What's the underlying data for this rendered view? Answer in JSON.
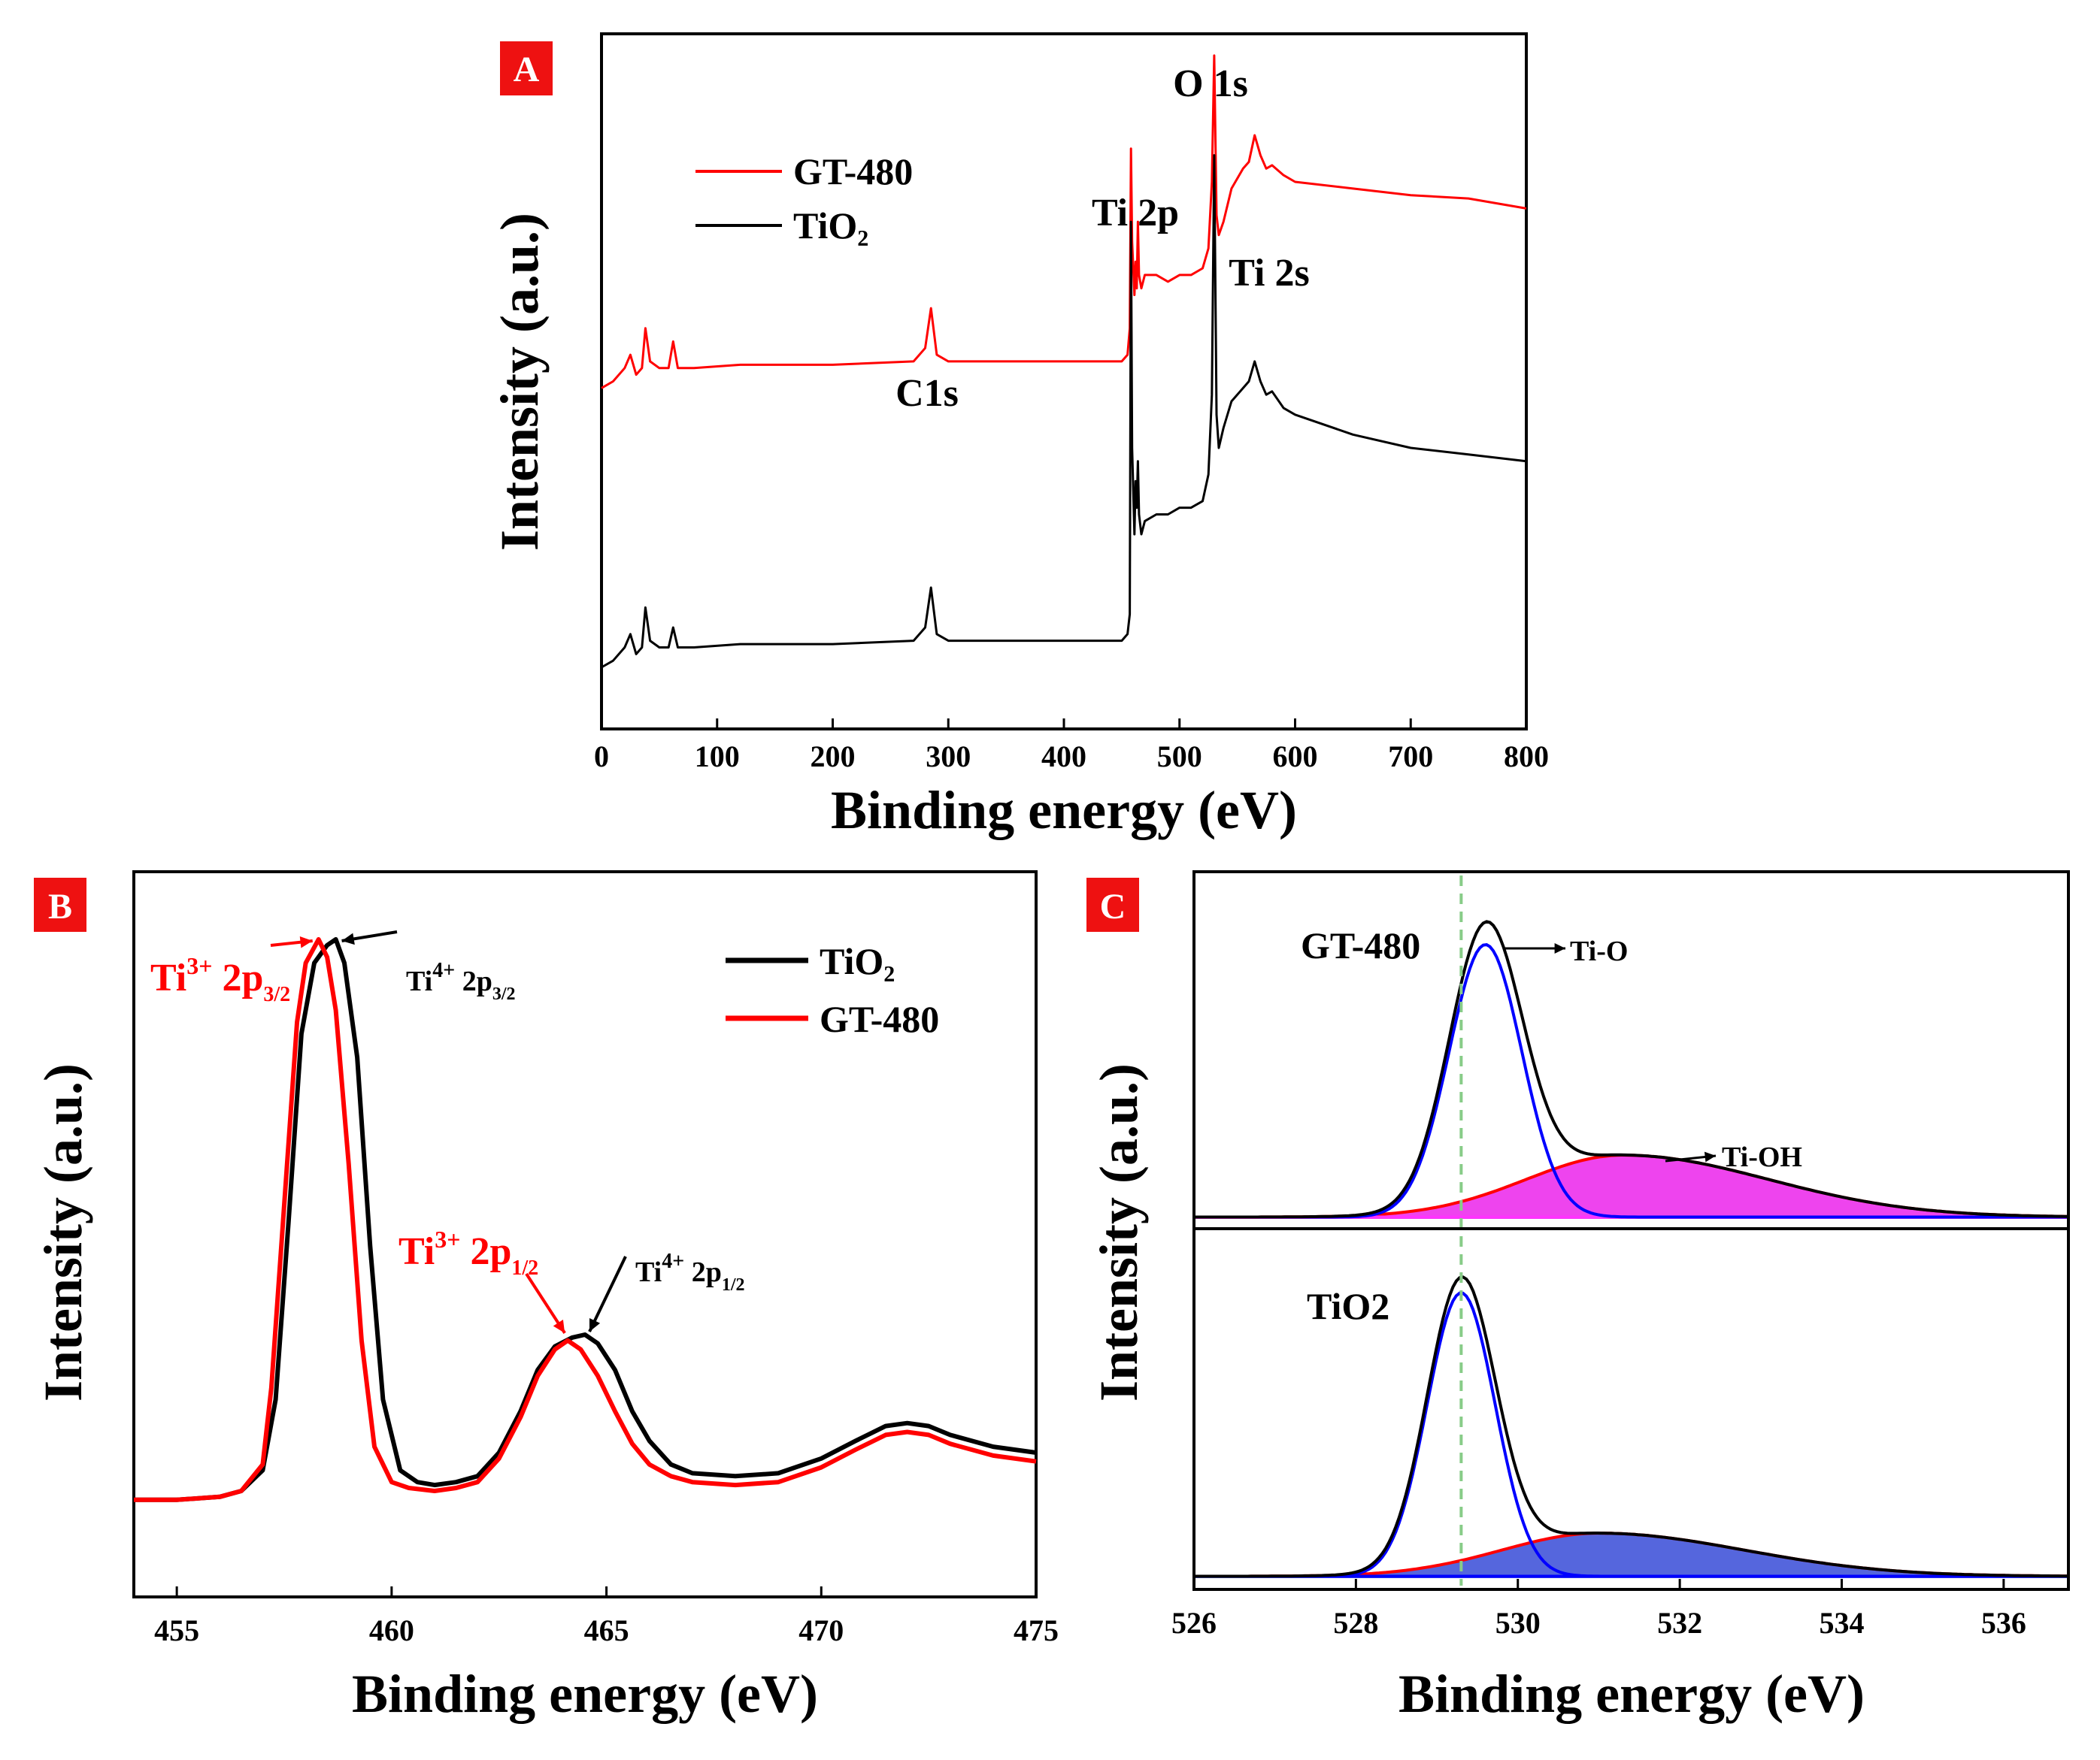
{
  "colors": {
    "red": "#ff0000",
    "black": "#000000",
    "blue": "#0000ff",
    "magenta": "#ff33ff",
    "magenta_fill": "#ee44ee",
    "blue_fill": "#5566dd",
    "badge": "#ee1111",
    "guide": "#88cc88"
  },
  "chart_data": [
    {
      "panel": "A",
      "type": "line",
      "title": "",
      "xlabel": "Binding energy (eV)",
      "ylabel": "Intensity (a.u.)",
      "xlim": [
        0,
        800
      ],
      "ylim": [
        0,
        100
      ],
      "xticks": [
        "0",
        "100",
        "200",
        "300",
        "400",
        "500",
        "600",
        "700",
        "800"
      ],
      "legend": {
        "position": "top-left",
        "entries": [
          "GT-480",
          "TiO₂"
        ]
      },
      "annotations": [
        {
          "text": "C1s",
          "x": 285
        },
        {
          "text": "Ti 2p",
          "x": 458
        },
        {
          "text": "O 1s",
          "x": 530
        },
        {
          "text": "Ti 2s",
          "x": 565
        }
      ],
      "series": [
        {
          "name": "GT-480",
          "color": "#ff0000",
          "x": [
            0,
            10,
            20,
            25,
            30,
            35,
            38,
            42,
            50,
            58,
            62,
            66,
            80,
            120,
            200,
            270,
            280,
            285,
            290,
            300,
            350,
            400,
            430,
            450,
            455,
            457,
            458,
            459,
            461,
            462,
            463,
            464,
            465,
            467,
            470,
            480,
            490,
            500,
            510,
            520,
            525,
            528,
            530,
            532,
            534,
            538,
            545,
            555,
            560,
            565,
            570,
            575,
            580,
            590,
            600,
            650,
            700,
            750,
            800
          ],
          "y": [
            49,
            50,
            52,
            54,
            51,
            52,
            58,
            53,
            52,
            52,
            56,
            52,
            52,
            52.5,
            52.5,
            53,
            55,
            61,
            54,
            53,
            53,
            53,
            53,
            53,
            54,
            58,
            85,
            71,
            63,
            68,
            64,
            74,
            66,
            64,
            66,
            66,
            65,
            66,
            66,
            67,
            70,
            80,
            99,
            75,
            72,
            74,
            79,
            82,
            83,
            87,
            84,
            82,
            82.5,
            81,
            80,
            79,
            78,
            77.5,
            76
          ]
        },
        {
          "name": "TiO₂",
          "color": "#000000",
          "x": [
            0,
            10,
            20,
            25,
            30,
            35,
            38,
            42,
            50,
            58,
            62,
            66,
            80,
            120,
            200,
            270,
            280,
            285,
            290,
            300,
            350,
            400,
            430,
            450,
            455,
            457,
            458,
            459,
            461,
            462,
            463,
            464,
            465,
            467,
            470,
            480,
            490,
            500,
            510,
            520,
            525,
            528,
            530,
            532,
            534,
            538,
            545,
            555,
            560,
            565,
            570,
            575,
            580,
            590,
            600,
            650,
            700,
            750,
            800
          ],
          "y": [
            7,
            8,
            10,
            12,
            9,
            10,
            16,
            11,
            10,
            10,
            13,
            10,
            10,
            10.5,
            10.5,
            11,
            13,
            19,
            12,
            11,
            11,
            11,
            11,
            11,
            12,
            15,
            74,
            40,
            27,
            35,
            31,
            38,
            30,
            27,
            29,
            30,
            30,
            31,
            31,
            32,
            36,
            48,
            84,
            45,
            40,
            43,
            47,
            49,
            50,
            53,
            50,
            48,
            48.5,
            46,
            45,
            42,
            40,
            39,
            38
          ]
        }
      ]
    },
    {
      "panel": "B",
      "type": "line",
      "title": "",
      "xlabel": "Binding energy (eV)",
      "ylabel": "Intensity (a.u.)",
      "xlim": [
        454,
        475
      ],
      "ylim": [
        0,
        100
      ],
      "xticks": [
        "455",
        "460",
        "465",
        "470",
        "475"
      ],
      "legend": {
        "position": "top-right",
        "entries": [
          "TiO₂",
          "GT-480"
        ]
      },
      "annotations": {
        "ti3_32": {
          "base": "Ti",
          "sup": "3+",
          "mid": " 2p",
          "sub": "3/2",
          "x": 458.3
        },
        "ti4_32": {
          "base": "Ti",
          "sup": "4+",
          "mid": " 2p",
          "sub": "3/2",
          "x": 458.7
        },
        "ti3_12": {
          "base": "Ti",
          "sup": "3+",
          "mid": " 2p",
          "sub": "1/2",
          "x": 464.1
        },
        "ti4_12": {
          "base": "Ti",
          "sup": "4+",
          "mid": " 2p",
          "sub": "1/2",
          "x": 464.5
        }
      },
      "series": [
        {
          "name": "TiO₂",
          "color": "#000000",
          "x": [
            454,
            455,
            456,
            456.5,
            457,
            457.3,
            457.6,
            457.9,
            458.2,
            458.5,
            458.7,
            458.9,
            459.2,
            459.5,
            459.8,
            460.2,
            460.6,
            461,
            461.5,
            462,
            462.5,
            463,
            463.4,
            463.8,
            464.2,
            464.5,
            464.8,
            465.2,
            465.6,
            466,
            466.5,
            467,
            468,
            469,
            470,
            470.8,
            471.5,
            472,
            472.5,
            473,
            474,
            475
          ],
          "y": [
            5,
            5,
            5.5,
            6.5,
            10,
            22,
            52,
            84,
            96,
            99,
            100,
            96,
            80,
            48,
            22,
            10,
            8,
            7.5,
            8,
            9,
            13,
            20,
            27,
            31,
            32.5,
            33,
            31.5,
            27,
            20,
            15,
            11,
            9.5,
            9,
            9.5,
            12,
            15,
            17.5,
            18,
            17.5,
            16,
            14,
            13
          ]
        },
        {
          "name": "GT-480",
          "color": "#ff0000",
          "x": [
            454,
            455,
            456,
            456.5,
            457,
            457.2,
            457.5,
            457.8,
            458,
            458.3,
            458.5,
            458.7,
            459,
            459.3,
            459.6,
            460,
            460.4,
            461,
            461.5,
            462,
            462.5,
            463,
            463.4,
            463.8,
            464.1,
            464.4,
            464.8,
            465.2,
            465.6,
            466,
            466.5,
            467,
            468,
            469,
            470,
            470.8,
            471.5,
            472,
            472.5,
            473,
            474,
            475
          ],
          "y": [
            5,
            5,
            5.5,
            6.5,
            11,
            24,
            55,
            86,
            96,
            100,
            97,
            88,
            62,
            32,
            14,
            8,
            7,
            6.5,
            7,
            8,
            12,
            19,
            26,
            30.5,
            32,
            30.5,
            26,
            20,
            14.5,
            11,
            9,
            8,
            7.5,
            8,
            10.5,
            13.5,
            16,
            16.5,
            16,
            14.5,
            12.5,
            11.5
          ]
        }
      ]
    },
    {
      "panel": "C",
      "type": "area",
      "title": "",
      "xlabel": "Binding energy (eV)",
      "ylabel": "Intensity (a.u.)",
      "xlim": [
        526,
        536.8
      ],
      "xticks": [
        "526",
        "528",
        "530",
        "532",
        "534",
        "536"
      ],
      "guide_line_x": 529.3,
      "subplots": [
        {
          "label": "GT-480",
          "ylim": [
            0,
            100
          ],
          "peak_labels": {
            "ti_o": "Ti-O",
            "ti_oh": "Ti-OH"
          },
          "components": [
            {
              "name": "envelope",
              "color": "#000000",
              "type": "pseudo-sum"
            },
            {
              "name": "Ti-O",
              "color": "#0000ff",
              "center": 529.6,
              "sigma": 0.45,
              "amplitude": 88
            },
            {
              "name": "Ti-OH",
              "color": "#ff33ff",
              "center": 531.3,
              "sigma_left": 1.2,
              "sigma_right": 1.8,
              "amplitude": 20
            }
          ]
        },
        {
          "label": "TiO2",
          "ylim": [
            0,
            100
          ],
          "components": [
            {
              "name": "envelope",
              "color": "#000000",
              "type": "pseudo-sum"
            },
            {
              "name": "Ti-O",
              "color": "#0000ff",
              "center": 529.3,
              "sigma": 0.42,
              "amplitude": 92
            },
            {
              "name": "Ti-OH",
              "color": "#5566dd",
              "center": 531.0,
              "sigma_left": 1.2,
              "sigma_right": 1.8,
              "amplitude": 14
            }
          ]
        }
      ]
    }
  ],
  "badges": {
    "a": "A",
    "b": "B",
    "c": "C"
  },
  "arrow_glyph": "→"
}
